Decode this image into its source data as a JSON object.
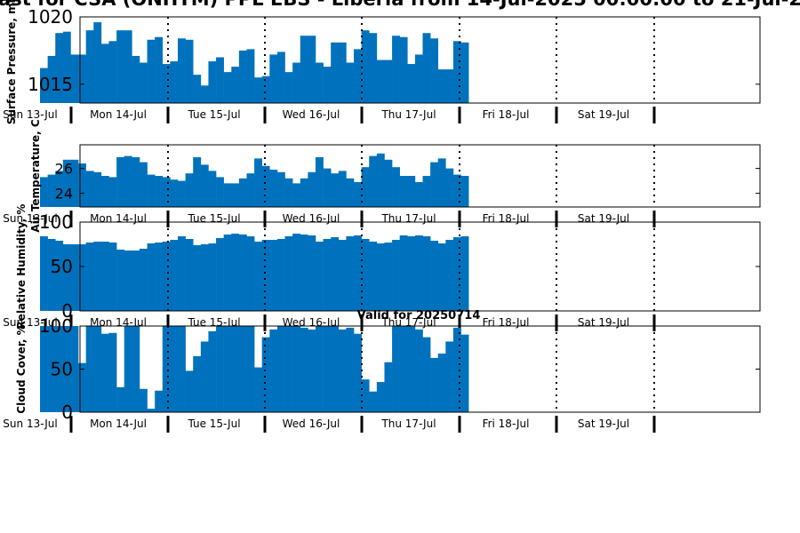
{
  "title": "ast for CSA (ONHTM) PPL EBS  - Liberia from 14-Jul-2025 00:00:00 to 21-Jul-2",
  "colors": {
    "bar": "#0072BD",
    "axes": "#000000",
    "background": "#ffffff"
  },
  "chart_data": [
    {
      "type": "bar",
      "ylabel": "Surface Pressure, mb",
      "ylim": [
        1013.6,
        1020
      ],
      "yticks": [
        1015,
        1020
      ],
      "day_labels": [
        "Sun 13-Jul",
        "Mon 14-Jul",
        "Tue 15-Jul",
        "Wed 16-Jul",
        "Thu 17-Jul",
        "Fri 18-Jul",
        "Sat 19-Jul"
      ],
      "values": [
        1016.2,
        1017.1,
        1018.8,
        1018.9,
        1017.2,
        1017.2,
        1019,
        1019.6,
        1018,
        1018.2,
        1019,
        1019,
        1017.1,
        1016.6,
        1018.3,
        1018.5,
        1016.5,
        1016.7,
        1018.4,
        1018.3,
        1015.7,
        1014.9,
        1016.7,
        1017,
        1015.9,
        1016.3,
        1017.5,
        1017.6,
        1015.5,
        1015.6,
        1017.2,
        1017.4,
        1015.9,
        1016.6,
        1018.6,
        1018.6,
        1016.6,
        1016.3,
        1018.1,
        1018.1,
        1016.6,
        1017.6,
        1019,
        1018.8,
        1016.8,
        1016.8,
        1018.6,
        1018.5,
        1016.5,
        1017.2,
        1018.8,
        1018.4,
        1016.1,
        1016.1,
        1018.2,
        1018.1
      ]
    },
    {
      "type": "bar",
      "ylabel": "Air Temperature, C",
      "ylim": [
        22.9,
        27.9
      ],
      "yticks": [
        24,
        26
      ],
      "day_labels": [
        "Sun 13-Jul",
        "Mon 14-Jul",
        "Tue 15-Jul",
        "Wed 16-Jul",
        "Thu 17-Jul",
        "Fri 18-Jul",
        "Sat 19-Jul"
      ],
      "values": [
        25.3,
        25.5,
        25.8,
        26.7,
        26.7,
        26.4,
        25.8,
        25.7,
        25.4,
        25.3,
        26.9,
        27,
        26.9,
        26.5,
        25.5,
        25.4,
        25.3,
        25.1,
        25,
        25.6,
        26.9,
        26.3,
        25.8,
        25.3,
        24.8,
        24.8,
        25.2,
        25.6,
        26.8,
        26.2,
        25.9,
        25.7,
        25.2,
        24.8,
        25.2,
        25.7,
        26.9,
        26,
        25.6,
        25.8,
        25.2,
        24.9,
        26.1,
        27,
        27.2,
        26.7,
        26.1,
        25.4,
        25.4,
        24.9,
        25.4,
        26.5,
        26.8,
        26,
        25.5,
        25.4
      ]
    },
    {
      "type": "bar",
      "ylabel": "Relative Humidity, %",
      "ylim": [
        0,
        100
      ],
      "yticks": [
        0,
        50,
        100
      ],
      "day_labels": [
        "Sun 13-Jul",
        "Mon 14-Jul",
        "Tue 15-Jul",
        "Wed 16-Jul",
        "Thu 17-Jul",
        "Fri 18-Jul",
        "Sat 19-Jul"
      ],
      "values": [
        84,
        81,
        79,
        75,
        75,
        75,
        77,
        78,
        78,
        77,
        69,
        68,
        68,
        70,
        76,
        77,
        78,
        80,
        84,
        81,
        74,
        75,
        76,
        82,
        86,
        87,
        86,
        84,
        78,
        80,
        80,
        81,
        84,
        87,
        86,
        85,
        78,
        81,
        83,
        80,
        84,
        85,
        81,
        78,
        76,
        77,
        80,
        85,
        84,
        85,
        84,
        79,
        76,
        80,
        83,
        84
      ]
    },
    {
      "type": "bar",
      "subtitle": "Valid for 20250714",
      "ylabel": "Cloud Cover, %",
      "ylim": [
        0,
        100
      ],
      "yticks": [
        0,
        50,
        100
      ],
      "day_labels": [
        "Sun 13-Jul",
        "Mon 14-Jul",
        "Tue 15-Jul",
        "Wed 16-Jul",
        "Thu 17-Jul",
        "Fri 18-Jul",
        "Sat 19-Jul"
      ],
      "values": [
        100,
        100,
        100,
        100,
        100,
        57,
        100,
        100,
        91,
        92,
        29,
        100,
        100,
        27,
        4,
        25,
        100,
        100,
        100,
        48,
        65,
        82,
        94,
        100,
        100,
        100,
        100,
        100,
        52,
        87,
        96,
        100,
        100,
        100,
        98,
        96,
        100,
        100,
        100,
        96,
        98,
        91,
        38,
        24,
        35,
        58,
        100,
        100,
        100,
        96,
        87,
        63,
        68,
        82,
        98,
        90
      ]
    }
  ]
}
